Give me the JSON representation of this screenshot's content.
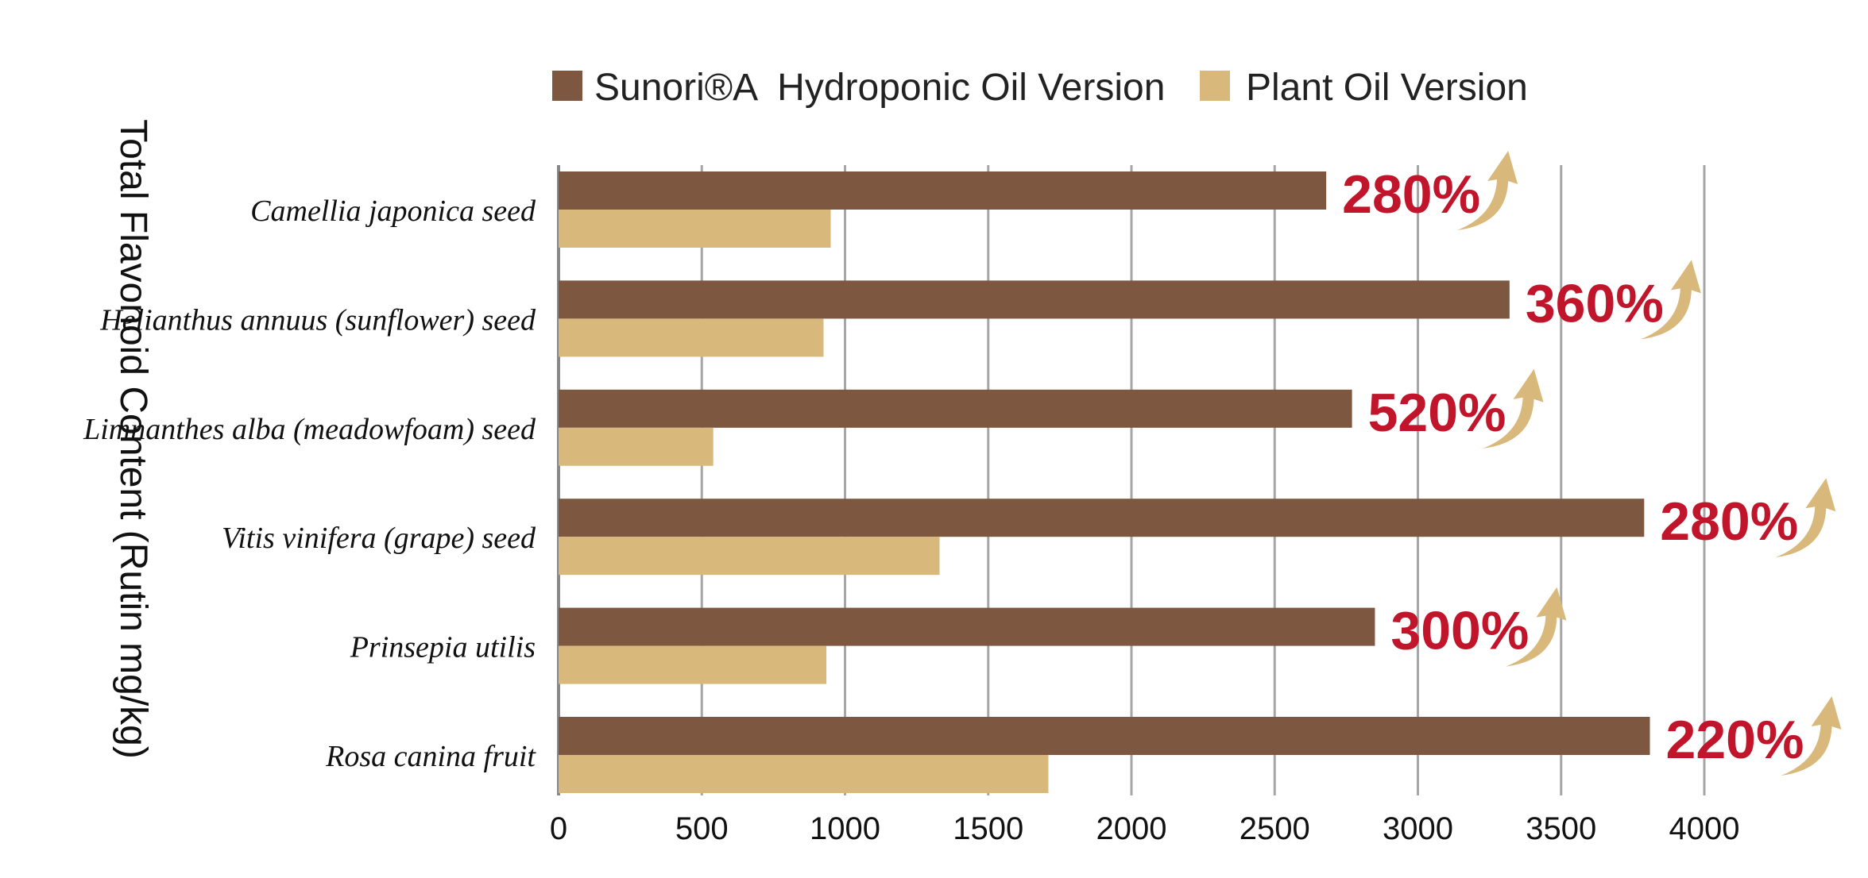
{
  "chart_data": {
    "type": "bar",
    "orientation": "horizontal",
    "ylabel": "Total Flavonoid Content (Rutin mg/kg)",
    "categories": [
      "Camellia japonica seed",
      "Helianthus annuus (sunflower) seed",
      "Limnanthes alba (meadowfoam) seed",
      "Vitis vinifera (grape) seed",
      "Prinsepia utilis",
      "Rosa canina fruit"
    ],
    "series": [
      {
        "name": "Sunori®A  Hydroponic Oil Version",
        "color": "#7d5740",
        "values": [
          2680,
          3320,
          2770,
          3790,
          2850,
          3810
        ]
      },
      {
        "name": "Plant Oil Version",
        "color": "#d8b97b",
        "values": [
          950,
          925,
          540,
          1330,
          935,
          1710
        ]
      }
    ],
    "annotations": [
      "280%",
      "360%",
      "520%",
      "280%",
      "300%",
      "220%"
    ],
    "annotation_color": "#c0152a",
    "arrow_color": "#d8b97b",
    "xlim": [
      0,
      4000
    ],
    "xticks": [
      0,
      500,
      1000,
      1500,
      2000,
      2500,
      3000,
      3500,
      4000
    ],
    "grid": "vertical",
    "legend_position": "top"
  }
}
